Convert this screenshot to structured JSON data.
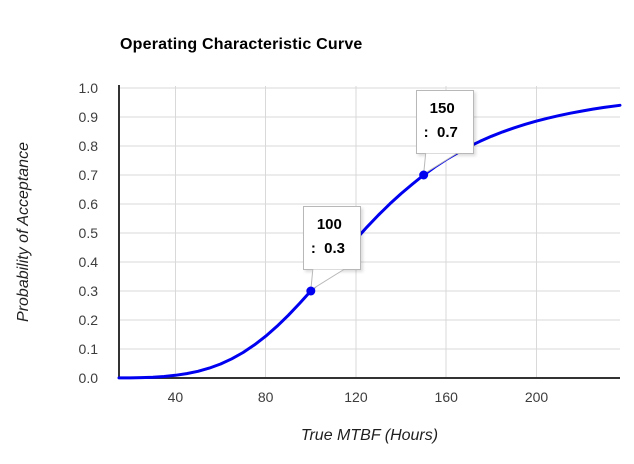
{
  "chart_data": {
    "type": "line",
    "title": "Operating Characteristic Curve",
    "xlabel": "True MTBF (Hours)",
    "ylabel": "Probability of Acceptance",
    "xlim": [
      15,
      237
    ],
    "ylim": [
      0,
      1
    ],
    "x_ticks": [
      40,
      80,
      120,
      160,
      200
    ],
    "y_ticks": [
      0.0,
      0.1,
      0.2,
      0.3,
      0.4,
      0.5,
      0.6,
      0.7,
      0.8,
      0.9,
      1.0
    ],
    "grid": true,
    "legend": "none",
    "series": [
      {
        "name": "Probability of Acceptance",
        "color": "#0000f0",
        "points": [
          [
            15,
            0.0002
          ],
          [
            20,
            0.0005
          ],
          [
            25,
            0.0013
          ],
          [
            30,
            0.0028
          ],
          [
            35,
            0.0053
          ],
          [
            40,
            0.0092
          ],
          [
            45,
            0.015
          ],
          [
            50,
            0.0231
          ],
          [
            55,
            0.034
          ],
          [
            60,
            0.0482
          ],
          [
            65,
            0.0661
          ],
          [
            70,
            0.088
          ],
          [
            75,
            0.1141
          ],
          [
            80,
            0.1443
          ],
          [
            85,
            0.1784
          ],
          [
            90,
            0.2162
          ],
          [
            95,
            0.257
          ],
          [
            100,
            0.3
          ],
          [
            105,
            0.3445
          ],
          [
            110,
            0.3896
          ],
          [
            115,
            0.4346
          ],
          [
            120,
            0.4787
          ],
          [
            125,
            0.5213
          ],
          [
            130,
            0.5621
          ],
          [
            135,
            0.6004
          ],
          [
            140,
            0.6358
          ],
          [
            145,
            0.6685
          ],
          [
            150,
            0.7
          ],
          [
            155,
            0.728
          ],
          [
            160,
            0.7535
          ],
          [
            165,
            0.7766
          ],
          [
            170,
            0.7975
          ],
          [
            175,
            0.8163
          ],
          [
            180,
            0.8334
          ],
          [
            185,
            0.8487
          ],
          [
            190,
            0.8624
          ],
          [
            195,
            0.8748
          ],
          [
            200,
            0.8859
          ],
          [
            205,
            0.896
          ],
          [
            210,
            0.905
          ],
          [
            215,
            0.9131
          ],
          [
            220,
            0.9205
          ],
          [
            225,
            0.9271
          ],
          [
            230,
            0.933
          ],
          [
            237,
            0.9405
          ]
        ]
      }
    ],
    "annotations": [
      {
        "x": 100,
        "y": 0.3,
        "line1": "100",
        "line2": ":  0.3"
      },
      {
        "x": 150,
        "y": 0.7,
        "line1": "150",
        "line2": ":  0.7"
      }
    ],
    "colors": {
      "curve": "#0000f0",
      "grid": "#d9d9d9",
      "axis": "#333333",
      "tick_text": "#3d3d3d",
      "title_text": "#000000",
      "callout_bg": "#ffffff",
      "callout_border": "#b8b8b8"
    }
  }
}
